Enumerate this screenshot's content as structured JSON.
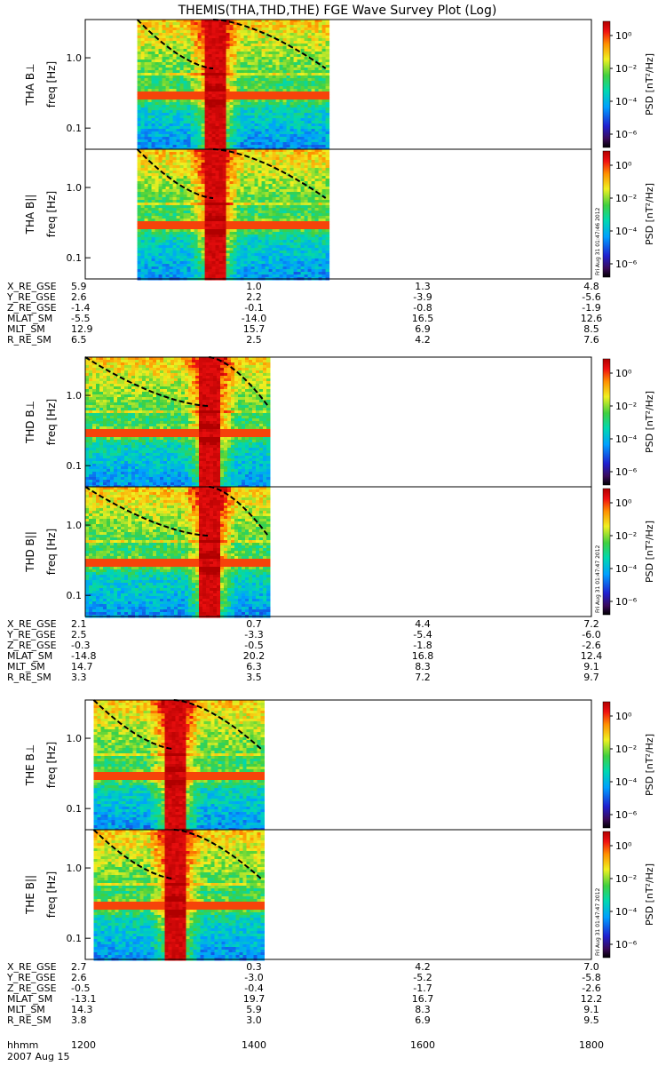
{
  "title": "THEMIS(THA,THD,THE) FGE Wave Survey Plot (Log)",
  "colorbar": {
    "label": "PSD [nT²/Hz]",
    "ticks": [
      "10⁰",
      "10⁻²",
      "10⁻⁴",
      "10⁻⁶"
    ]
  },
  "ylabel": "freq [Hz]",
  "yticks": [
    "1.0",
    "0.1"
  ],
  "xticks": [
    "1200",
    "1400",
    "1600",
    "1800"
  ],
  "footer": {
    "row_label": "hhmm",
    "date": "2007 Aug 15"
  },
  "timestamps": [
    "Fri Aug 31 01:47:46 2012",
    "Fri Aug 31 01:47:47 2012",
    "Fri Aug 31 01:47:47 2012"
  ],
  "ephemeris_labels": [
    "X_RE_GSE",
    "Y_RE_GSE",
    "Z_RE_GSE",
    "MLAT_SM",
    "MLT_SM",
    "R_RE_SM"
  ],
  "chart_data": [
    {
      "type": "heatmap",
      "probe": "THA",
      "panels": [
        "THA B⊥",
        "THA B||"
      ],
      "data_start": "1237",
      "data_end": "1451",
      "line_start": "1331",
      "ylim_hz": [
        0.05,
        3.5
      ],
      "ephemeris": [
        [
          "5.9",
          "1.0",
          "1.3",
          "4.8"
        ],
        [
          "2.6",
          "2.2",
          "-3.9",
          "-5.6"
        ],
        [
          "-1.4",
          "-0.1",
          "-0.8",
          "-1.9"
        ],
        [
          "-5.5",
          "-14.0",
          "16.5",
          "12.6"
        ],
        [
          "12.9",
          "15.7",
          "6.9",
          "8.5"
        ],
        [
          "6.5",
          "2.5",
          "4.2",
          "7.6"
        ]
      ]
    },
    {
      "type": "heatmap",
      "probe": "THD",
      "panels": [
        "THD B⊥",
        "THD B||"
      ],
      "data_start": "1200",
      "data_end": "1410",
      "line_start": "1288",
      "ylim_hz": [
        0.05,
        3.5
      ],
      "ephemeris": [
        [
          "2.1",
          "0.7",
          "4.4",
          "7.2"
        ],
        [
          "2.5",
          "-3.3",
          "-5.4",
          "-6.0"
        ],
        [
          "-0.3",
          "-0.5",
          "-1.8",
          "-2.6"
        ],
        [
          "-14.8",
          "20.2",
          "16.8",
          "12.4"
        ],
        [
          "14.7",
          "6.3",
          "8.3",
          "9.1"
        ],
        [
          "3.3",
          "3.5",
          "7.2",
          "9.7"
        ]
      ]
    },
    {
      "type": "heatmap",
      "probe": "THE",
      "panels": [
        "THE B⊥",
        "THE B||"
      ],
      "data_start": "1206",
      "data_end": "1405",
      "line_start": "1303",
      "ylim_hz": [
        0.05,
        3.5
      ],
      "ephemeris": [
        [
          "2.7",
          "0.3",
          "4.2",
          "7.0"
        ],
        [
          "2.6",
          "-3.0",
          "-5.2",
          "-5.8"
        ],
        [
          "-0.5",
          "-0.4",
          "-1.7",
          "-2.6"
        ],
        [
          "-13.1",
          "19.7",
          "16.7",
          "12.2"
        ],
        [
          "14.3",
          "5.9",
          "8.3",
          "9.1"
        ],
        [
          "3.8",
          "3.0",
          "6.9",
          "9.5"
        ]
      ]
    }
  ]
}
